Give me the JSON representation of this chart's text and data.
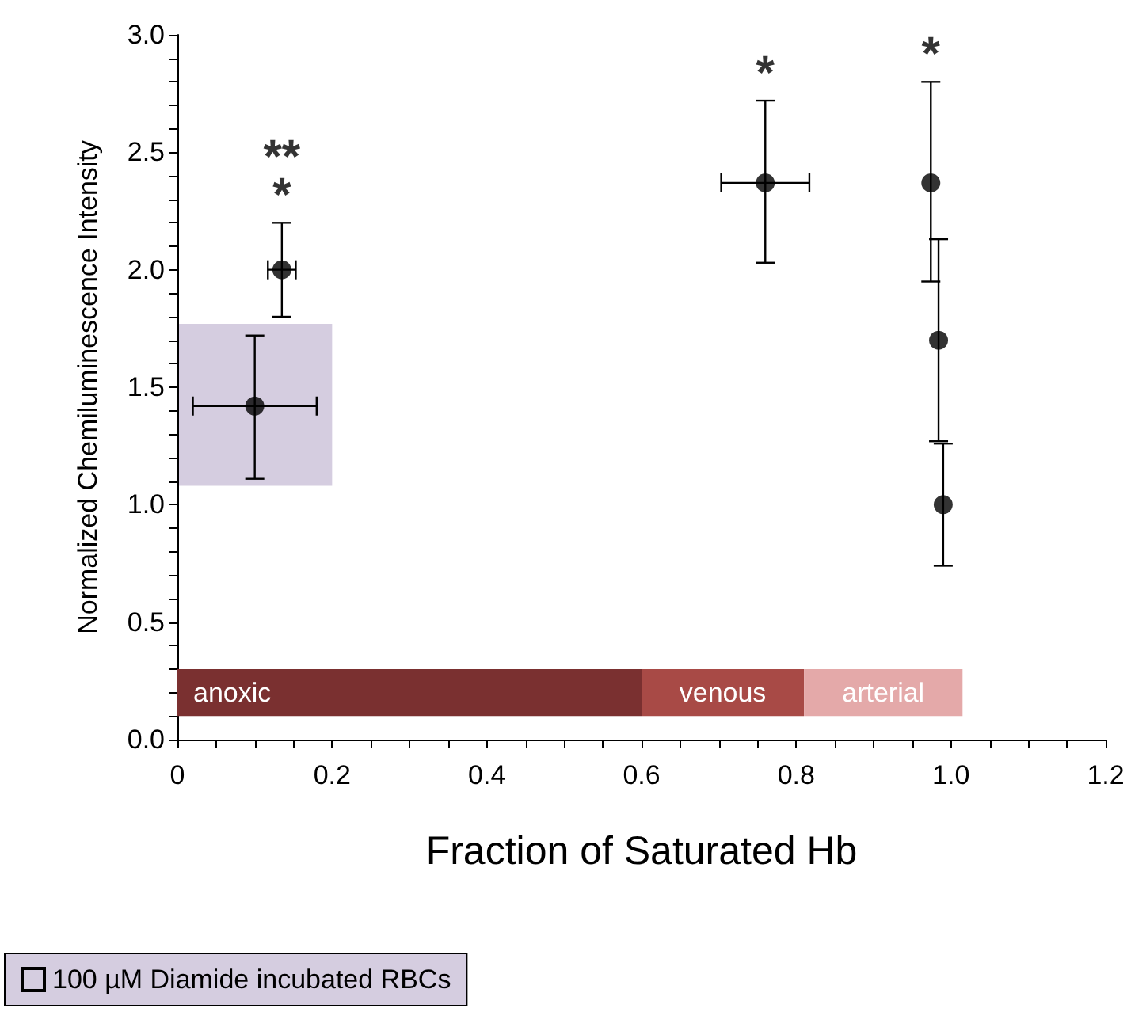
{
  "chart_data": {
    "type": "scatter",
    "xlabel": "Fraction of Saturated Hb",
    "ylabel": "Normalized Chemiluminescence Intensity",
    "xlim": [
      0,
      1.2
    ],
    "xticks": [
      0,
      {
        "value": 0.2,
        "label": "0.2"
      },
      {
        "value": 0.4,
        "label": "0.4"
      },
      {
        "value": 0.6,
        "label": "0.6"
      },
      {
        "value": 0.8,
        "label": "0.8"
      },
      {
        "value": 1,
        "label": "1.0"
      },
      {
        "value": 1.2,
        "label": "1.2"
      }
    ],
    "ylim": [
      0,
      3
    ],
    "yticks": [
      {
        "value": 0,
        "label": "0.0"
      },
      0.5,
      {
        "value": 1,
        "label": "1.0"
      },
      1.5,
      {
        "value": 2,
        "label": "2.0"
      },
      2.5,
      {
        "value": 3,
        "label": "3.0"
      }
    ],
    "grid": false,
    "legend": "bottom left",
    "marker": "circle",
    "series": [
      {
        "color": "#000000",
        "x": [
          0.1,
          0.135,
          0.76,
          0.974,
          0.984,
          0.99
        ],
        "values": [
          1.42,
          2.0,
          2.37,
          2.37,
          1.7,
          1.0
        ],
        "errors": [
          [
            1.11,
            1.72
          ],
          [
            1.8,
            2.2
          ],
          [
            2.03,
            2.72
          ],
          [
            1.95,
            2.8
          ],
          [
            1.27,
            2.13
          ],
          [
            0.74,
            1.26
          ]
        ],
        "xerrors": [
          0.08,
          0.018,
          0.057,
          null,
          null,
          null
        ]
      }
    ],
    "bands": [
      {
        "axis": "x",
        "from": 0,
        "to": 0.6,
        "label": "anoxic",
        "color": "#7a3030"
      },
      {
        "axis": "x",
        "from": 0.6,
        "to": 0.81,
        "label": "venous",
        "color": "#a84a46"
      },
      {
        "axis": "x",
        "from": 0.81,
        "to": 1.015,
        "label": "arterial",
        "color": "#e4a9a9"
      },
      {
        "axis": "x",
        "from": 0,
        "to": 0.2,
        "label": "100 µM Diamide incubated RBCs",
        "color": "#d5cde0"
      }
    ],
    "annotations": [
      {
        "text": "**",
        "x": 0.135,
        "y": 2.0
      },
      {
        "text": "*",
        "x": 0.135,
        "y": 2.0
      },
      {
        "text": "*",
        "x": 0.76,
        "y": 2.37
      },
      {
        "text": "*",
        "x": 0.974,
        "y": 2.37
      }
    ]
  }
}
